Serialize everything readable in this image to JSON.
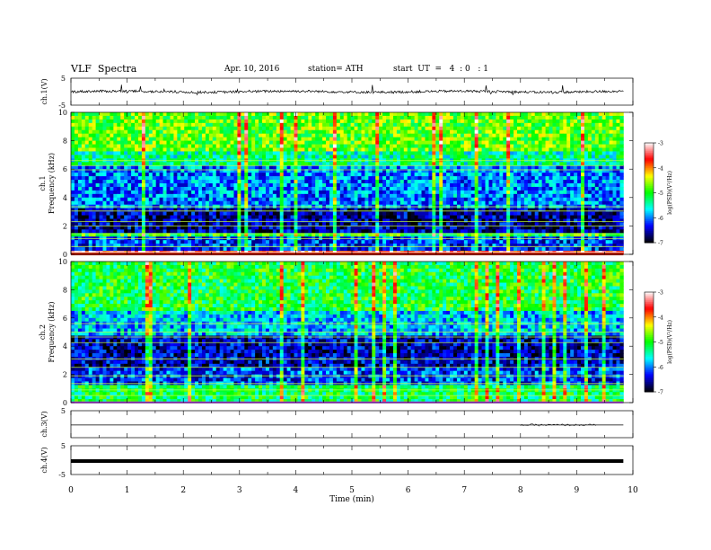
{
  "header": {
    "title": "VLF  Spectra",
    "date": "Apr. 10, 2016",
    "station": "station= ATH",
    "start": "start  UT  =   4  : 0   : 1"
  },
  "colorbar": {
    "label": "log(PSD)(V²/Hz)",
    "ticks": [
      "-3",
      "-4",
      "-5",
      "-6",
      "-7"
    ],
    "colors": [
      "#ffffff",
      "#ff0000",
      "#ffff00",
      "#00ff00",
      "#00ffff",
      "#0000ff",
      "#000000"
    ]
  },
  "chart_data": [
    {
      "type": "line",
      "panel": "ch1-waveform",
      "ylabel": "ch.1(V)",
      "yticks": [
        "5",
        "-5"
      ],
      "ylim": [
        -5,
        5
      ],
      "xlim": [
        0,
        10
      ],
      "series": [
        {
          "values_summary": "noisy waveform around 0 V with sharp spikes",
          "x_end_min": 9.83
        }
      ]
    },
    {
      "type": "heatmap",
      "panel": "ch1-spectrogram",
      "ylabel_top": "ch.1",
      "ylabel": "Frequency  (kHz)",
      "yticks": [
        "0",
        "2",
        "4",
        "6",
        "8",
        "10"
      ],
      "ylim": [
        0,
        10
      ],
      "xlim": [
        0,
        10
      ],
      "x_end_min": 9.83,
      "bands_kHz": [
        {
          "from": 0,
          "to": 0.3,
          "level": -3.5
        },
        {
          "from": 0.3,
          "to": 1.2,
          "level": -6.2
        },
        {
          "from": 1.2,
          "to": 1.6,
          "level": -5.0
        },
        {
          "from": 1.6,
          "to": 3.3,
          "level": -6.6
        },
        {
          "from": 3.3,
          "to": 6.2,
          "level": -6.0
        },
        {
          "from": 6.2,
          "to": 7.3,
          "level": -5.4
        },
        {
          "from": 7.3,
          "to": 10,
          "level": -4.8
        }
      ]
    },
    {
      "type": "heatmap",
      "panel": "ch2-spectrogram",
      "ylabel_top": "ch.2",
      "ylabel": "Frequency  (kHz)",
      "yticks": [
        "0",
        "2",
        "4",
        "6",
        "8",
        "10"
      ],
      "ylim": [
        0,
        10
      ],
      "xlim": [
        0,
        10
      ],
      "x_end_min": 9.83,
      "bands_kHz": [
        {
          "from": 0,
          "to": 1.2,
          "level": -5.2
        },
        {
          "from": 1.2,
          "to": 2.6,
          "level": -6.2
        },
        {
          "from": 2.6,
          "to": 4.8,
          "level": -6.5
        },
        {
          "from": 4.8,
          "to": 6.5,
          "level": -5.8
        },
        {
          "from": 6.5,
          "to": 10,
          "level": -5.1
        }
      ]
    },
    {
      "type": "line",
      "panel": "ch3-waveform",
      "ylabel": "ch.3(V)",
      "yticks": [
        "5"
      ],
      "ylim": [
        -5,
        5
      ],
      "xlim": [
        0,
        10
      ],
      "series": [
        {
          "values_summary": "flat near 0 V",
          "x_end_min": 9.83
        }
      ]
    },
    {
      "type": "line",
      "panel": "ch4-waveform",
      "ylabel": "ch.4(V)",
      "yticks": [
        "5",
        "-5"
      ],
      "ylim": [
        -5,
        5
      ],
      "xlim": [
        0,
        10
      ],
      "xlabel": "Time  (min)",
      "xticks": [
        "0",
        "1",
        "2",
        "3",
        "4",
        "5",
        "6",
        "7",
        "8",
        "9",
        "10"
      ],
      "series": [
        {
          "values_summary": "dense constant signal near 0 V",
          "x_end_min": 9.83
        }
      ]
    }
  ]
}
